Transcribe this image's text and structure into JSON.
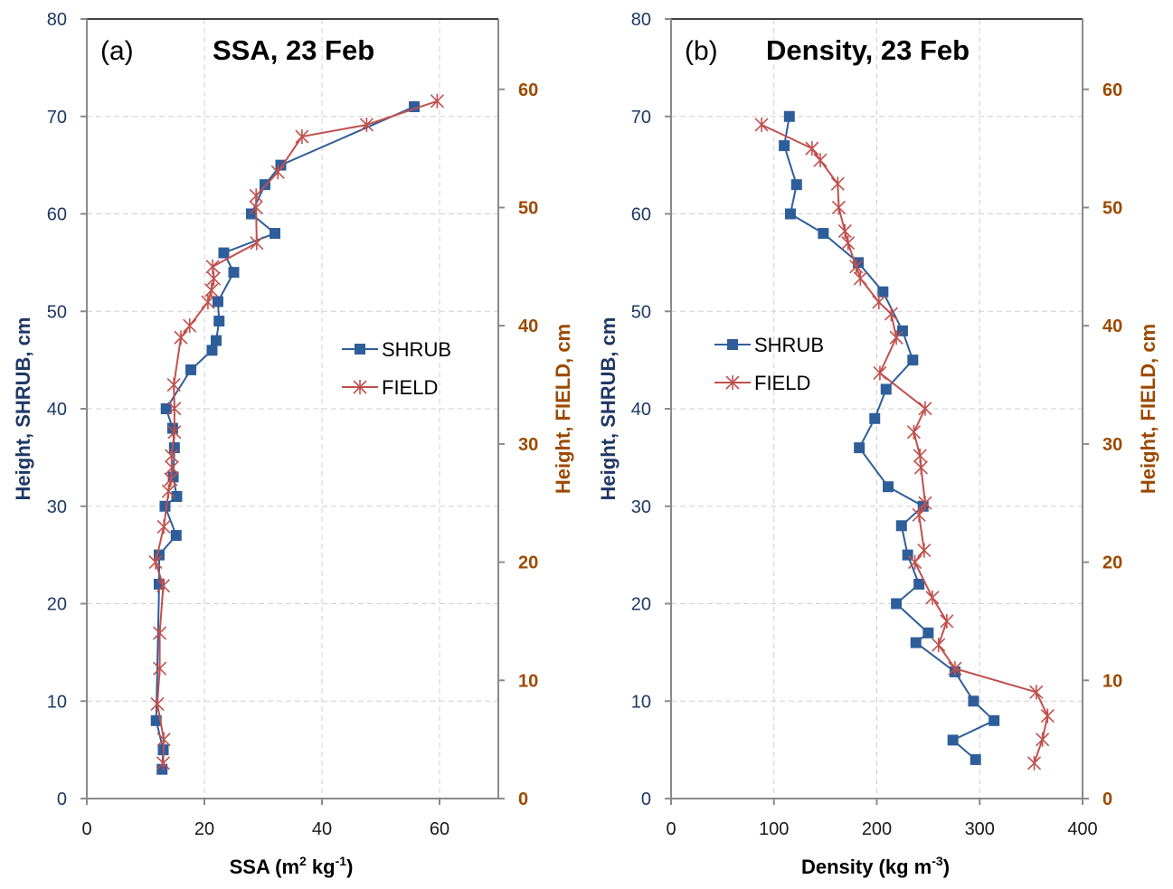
{
  "colors": {
    "shrub": "#2e5e9a",
    "field": "#c0504d",
    "left_axis_text": "#1f3864",
    "right_axis_text": "#9c4a00"
  },
  "chart_data": [
    {
      "type": "line",
      "panel_label": "(a)",
      "title": "SSA, 23 Feb",
      "xlabel": "SSA (m² kg⁻¹)",
      "xlabel_parts": {
        "base": "SSA (m",
        "sup1": "2",
        "mid": " kg",
        "sup2": "-1",
        "end": ")"
      },
      "ylabel_left": "Height, SHRUB, cm",
      "ylabel_right": "Height, FIELD, cm",
      "xlim": [
        0,
        70
      ],
      "x_ticks": [
        0,
        20,
        40,
        60
      ],
      "ylim_left": [
        0,
        80
      ],
      "y_ticks_left": [
        0,
        10,
        20,
        30,
        40,
        50,
        60,
        70,
        80
      ],
      "ylim_right": [
        0,
        65.95
      ],
      "y_ticks_right": [
        0,
        10,
        20,
        30,
        40,
        50,
        60
      ],
      "grid": true,
      "legend": {
        "position": "center-right",
        "entries": [
          "SHRUB",
          "FIELD"
        ]
      },
      "series": [
        {
          "name": "SHRUB",
          "axis": "left",
          "marker": "square",
          "points": [
            [
              55.7,
              71
            ],
            [
              33.0,
              65
            ],
            [
              30.3,
              63
            ],
            [
              28.0,
              60
            ],
            [
              32.0,
              58
            ],
            [
              23.3,
              56
            ],
            [
              25.0,
              54
            ],
            [
              22.3,
              51
            ],
            [
              22.5,
              49
            ],
            [
              22.0,
              47
            ],
            [
              21.3,
              46
            ],
            [
              17.7,
              44
            ],
            [
              13.5,
              40
            ],
            [
              14.6,
              38
            ],
            [
              14.9,
              36
            ],
            [
              14.7,
              33
            ],
            [
              15.3,
              31
            ],
            [
              13.3,
              30
            ],
            [
              15.2,
              27
            ],
            [
              12.3,
              25
            ],
            [
              12.3,
              22
            ],
            [
              11.8,
              8
            ],
            [
              13.0,
              5
            ],
            [
              12.8,
              3
            ]
          ]
        },
        {
          "name": "FIELD",
          "axis": "right",
          "marker": "asterisk",
          "points": [
            [
              59.6,
              59
            ],
            [
              47.6,
              57
            ],
            [
              36.6,
              56
            ],
            [
              32.5,
              53
            ],
            [
              28.8,
              51
            ],
            [
              28.8,
              50
            ],
            [
              28.9,
              47
            ],
            [
              21.4,
              45
            ],
            [
              21.6,
              44
            ],
            [
              21.2,
              43
            ],
            [
              20.6,
              42
            ],
            [
              17.5,
              40
            ],
            [
              16.0,
              39
            ],
            [
              14.8,
              35
            ],
            [
              14.9,
              33
            ],
            [
              14.9,
              31
            ],
            [
              14.4,
              29
            ],
            [
              14.5,
              28
            ],
            [
              14.3,
              27
            ],
            [
              13.9,
              26
            ],
            [
              13.1,
              23
            ],
            [
              11.7,
              20
            ],
            [
              13.0,
              18
            ],
            [
              12.4,
              14
            ],
            [
              12.4,
              11
            ],
            [
              12.0,
              8
            ],
            [
              13.1,
              5
            ],
            [
              13.0,
              3
            ]
          ]
        }
      ]
    },
    {
      "type": "line",
      "panel_label": "(b)",
      "title": "Density, 23 Feb",
      "xlabel": "Density (kg m⁻³)",
      "xlabel_parts": {
        "base": "Density (kg m",
        "sup1": "-3",
        "end": ")"
      },
      "ylabel_left": "Height, SHRUB, cm",
      "ylabel_right": "Height, FIELD, cm",
      "xlim": [
        0,
        400
      ],
      "x_ticks": [
        0,
        100,
        200,
        300,
        400
      ],
      "ylim_left": [
        0,
        80
      ],
      "y_ticks_left": [
        0,
        10,
        20,
        30,
        40,
        50,
        60,
        70,
        80
      ],
      "ylim_right": [
        0,
        65.95
      ],
      "y_ticks_right": [
        0,
        10,
        20,
        30,
        40,
        50,
        60
      ],
      "grid": true,
      "legend": {
        "position": "center-left",
        "entries": [
          "SHRUB",
          "FIELD"
        ]
      },
      "series": [
        {
          "name": "SHRUB",
          "axis": "left",
          "marker": "square",
          "points": [
            [
              115,
              70
            ],
            [
              110,
              67
            ],
            [
              122,
              63
            ],
            [
              116,
              60
            ],
            [
              148,
              58
            ],
            [
              182,
              55
            ],
            [
              206,
              52
            ],
            [
              225,
              48
            ],
            [
              235,
              45
            ],
            [
              209,
              42
            ],
            [
              198,
              39
            ],
            [
              183,
              36
            ],
            [
              211,
              32
            ],
            [
              245,
              30
            ],
            [
              224,
              28
            ],
            [
              230,
              25
            ],
            [
              241,
              22
            ],
            [
              219,
              20
            ],
            [
              250,
              17
            ],
            [
              238,
              16
            ],
            [
              276,
              13
            ],
            [
              294,
              10
            ],
            [
              314,
              8
            ],
            [
              274,
              6
            ],
            [
              296,
              4
            ]
          ]
        },
        {
          "name": "FIELD",
          "axis": "right",
          "marker": "asterisk",
          "points": [
            [
              88,
              57
            ],
            [
              137,
              55
            ],
            [
              145,
              54
            ],
            [
              162,
              52
            ],
            [
              163,
              50
            ],
            [
              169,
              48
            ],
            [
              172,
              47
            ],
            [
              180,
              45
            ],
            [
              184,
              44
            ],
            [
              202,
              42
            ],
            [
              214,
              41
            ],
            [
              219,
              39
            ],
            [
              203,
              36
            ],
            [
              247,
              33
            ],
            [
              236,
              31
            ],
            [
              242,
              29
            ],
            [
              243,
              28
            ],
            [
              247,
              25
            ],
            [
              241,
              24
            ],
            [
              246,
              21
            ],
            [
              237,
              20
            ],
            [
              254,
              17
            ],
            [
              268,
              15
            ],
            [
              260,
              13
            ],
            [
              276,
              11
            ],
            [
              355,
              9
            ],
            [
              366,
              7
            ],
            [
              361,
              5
            ],
            [
              353,
              3
            ]
          ]
        }
      ]
    }
  ]
}
